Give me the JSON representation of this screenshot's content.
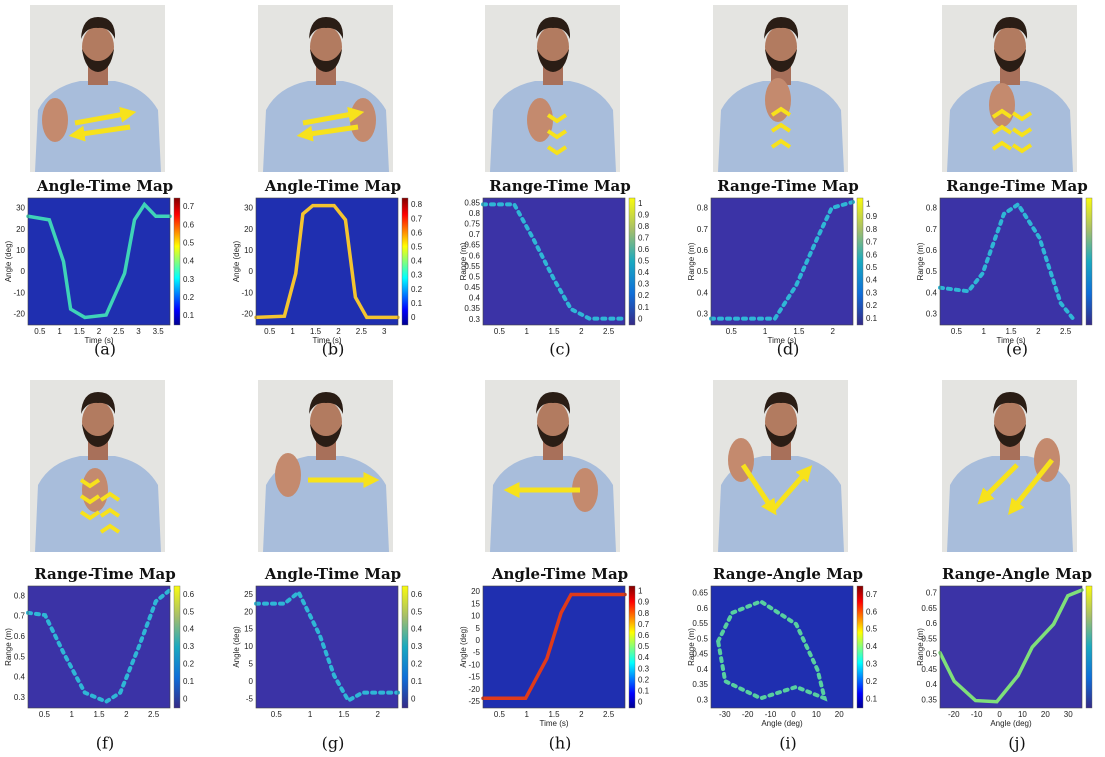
{
  "panels": [
    {
      "caption": "(a)",
      "title": "Angle-Time Map",
      "xlabel": "Time (s)",
      "ylabel": "Angle (deg)",
      "xticks": [
        "0.5",
        "1",
        "1.5",
        "2",
        "2.5",
        "3",
        "3.5"
      ],
      "yticks": [
        "30",
        "20",
        "10",
        "0",
        "-10",
        "-20"
      ],
      "cbar_ticks": [
        "0.7",
        "0.6",
        "0.5",
        "0.4",
        "0.3",
        "0.2",
        "0.1"
      ]
    },
    {
      "caption": "(b)",
      "title": "Angle-Time Map",
      "xlabel": "Time (s)",
      "ylabel": "Angle (deg)",
      "xticks": [
        "0.5",
        "1",
        "1.5",
        "2",
        "2.5",
        "3"
      ],
      "yticks": [
        "30",
        "20",
        "10",
        "0",
        "-10",
        "-20"
      ],
      "cbar_ticks": [
        "0.8",
        "0.7",
        "0.6",
        "0.5",
        "0.4",
        "0.3",
        "0.2",
        "0.1",
        "0"
      ]
    },
    {
      "caption": "(c)",
      "title": "Range-Time Map",
      "ylabel": "Range (m)",
      "xticks": [
        "0.5",
        "1",
        "1.5",
        "2",
        "2.5"
      ],
      "yticks": [
        "0.85",
        "0.8",
        "0.75",
        "0.7",
        "0.65",
        "0.6",
        "0.55",
        "0.5",
        "0.45",
        "0.4",
        "0.35",
        "0.3"
      ],
      "cbar_ticks": [
        "1",
        "0.9",
        "0.8",
        "0.7",
        "0.6",
        "0.5",
        "0.4",
        "0.3",
        "0.2",
        "0.1",
        "0"
      ]
    },
    {
      "caption": "(d)",
      "title": "Range-Time Map",
      "xlabel": "Time (s)",
      "ylabel": "Range (m)",
      "xticks": [
        "0.5",
        "1",
        "1.5",
        "2"
      ],
      "yticks": [
        "0.8",
        "0.7",
        "0.6",
        "0.5",
        "0.4",
        "0.3"
      ],
      "cbar_ticks": [
        "1",
        "0.9",
        "0.8",
        "0.7",
        "0.6",
        "0.5",
        "0.4",
        "0.3",
        "0.2",
        "0.1"
      ]
    },
    {
      "caption": "(e)",
      "title": "Range-Time Map",
      "xlabel": "Time (s)",
      "ylabel": "Range (m)",
      "xticks": [
        "0.5",
        "1",
        "1.5",
        "2",
        "2.5"
      ],
      "yticks": [
        "0.8",
        "0.7",
        "0.6",
        "0.5",
        "0.4",
        "0.3"
      ]
    },
    {
      "caption": "(f)",
      "title": "Range-Time Map",
      "ylabel": "Range (m)",
      "xticks": [
        "0.5",
        "1",
        "1.5",
        "2",
        "2.5"
      ],
      "yticks": [
        "0.8",
        "0.7",
        "0.6",
        "0.5",
        "0.4",
        "0.3"
      ],
      "cbar_ticks": [
        "0.6",
        "0.5",
        "0.4",
        "0.3",
        "0.2",
        "0.1",
        "0"
      ]
    },
    {
      "caption": "(g)",
      "title": "Angle-Time Map",
      "ylabel": "Angle (deg)",
      "xticks": [
        "0.5",
        "1",
        "1.5",
        "2"
      ],
      "yticks": [
        "25",
        "20",
        "15",
        "10",
        "5",
        "0",
        "-5"
      ],
      "cbar_ticks": [
        "0.6",
        "0.5",
        "0.4",
        "0.3",
        "0.2",
        "0.1",
        "0"
      ]
    },
    {
      "caption": "(h)",
      "title": "Angle-Time Map",
      "xlabel": "Time (s)",
      "ylabel": "Angle (deg)",
      "xticks": [
        "0.5",
        "1",
        "1.5",
        "2",
        "2.5"
      ],
      "yticks": [
        "20",
        "15",
        "10",
        "5",
        "0",
        "-5",
        "-10",
        "-15",
        "-20",
        "-25"
      ],
      "cbar_ticks": [
        "1",
        "0.9",
        "0.8",
        "0.7",
        "0.6",
        "0.5",
        "0.4",
        "0.3",
        "0.2",
        "0.1",
        "0"
      ]
    },
    {
      "caption": "(i)",
      "title": "Range-Angle Map",
      "xlabel": "Angle (deg)",
      "ylabel": "Range (m)",
      "xticks": [
        "-30",
        "-20",
        "-10",
        "0",
        "10",
        "20"
      ],
      "yticks": [
        "0.65",
        "0.6",
        "0.55",
        "0.5",
        "0.45",
        "0.4",
        "0.35",
        "0.3"
      ],
      "cbar_ticks": [
        "0.7",
        "0.6",
        "0.5",
        "0.4",
        "0.3",
        "0.2",
        "0.1"
      ]
    },
    {
      "caption": "(j)",
      "title": "Range-Angle Map",
      "xlabel": "Angle (deg)",
      "ylabel": "Range (m)",
      "xticks": [
        "-20",
        "-10",
        "0",
        "10",
        "20",
        "30"
      ],
      "yticks": [
        "0.7",
        "0.65",
        "0.6",
        "0.55",
        "0.5",
        "0.45",
        "0.4",
        "0.35"
      ]
    }
  ]
}
